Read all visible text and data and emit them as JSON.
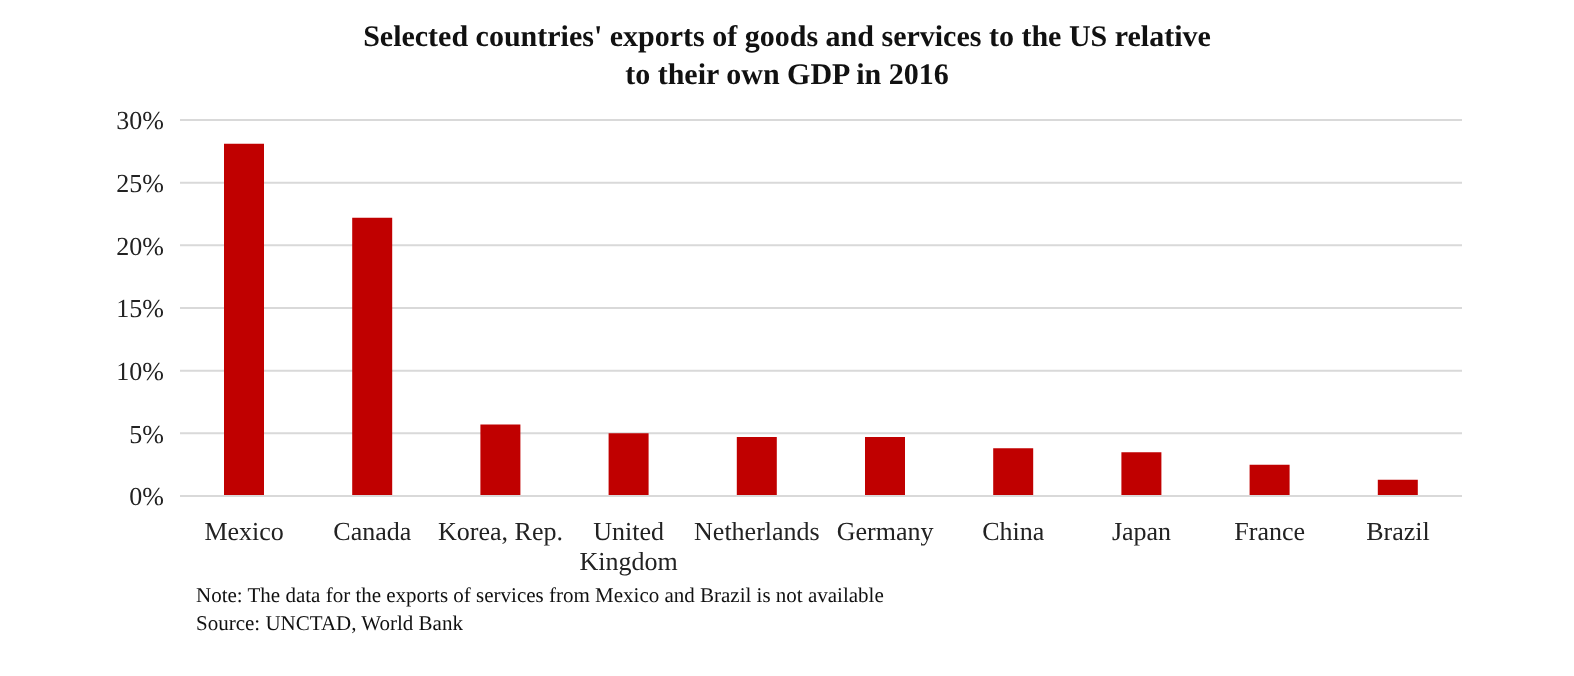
{
  "chart_data": {
    "type": "bar",
    "title": "Selected countries' exports of goods and services to the US relative to their own GDP in 2016",
    "categories": [
      "Mexico",
      "Canada",
      "Korea, Rep.",
      "United Kingdom",
      "Netherlands",
      "Germany",
      "China",
      "Japan",
      "France",
      "Brazil"
    ],
    "values": [
      28.1,
      22.2,
      5.7,
      5.0,
      4.7,
      4.7,
      3.8,
      3.5,
      2.5,
      1.3
    ],
    "color": "#c00000",
    "ylim": [
      0,
      30
    ],
    "yticks": [
      {
        "value": 0,
        "label": "0%"
      },
      {
        "value": 5,
        "label": "5%"
      },
      {
        "value": 10,
        "label": "10%"
      },
      {
        "value": 15,
        "label": "15%"
      },
      {
        "value": 20,
        "label": "20%"
      },
      {
        "value": 25,
        "label": "25%"
      },
      {
        "value": 30,
        "label": "30%"
      }
    ],
    "grid": "y",
    "annotations": [
      "Note: The data for the exports of services from Mexico and Brazil  is not available",
      "Source: UNCTAD, World Bank"
    ]
  }
}
